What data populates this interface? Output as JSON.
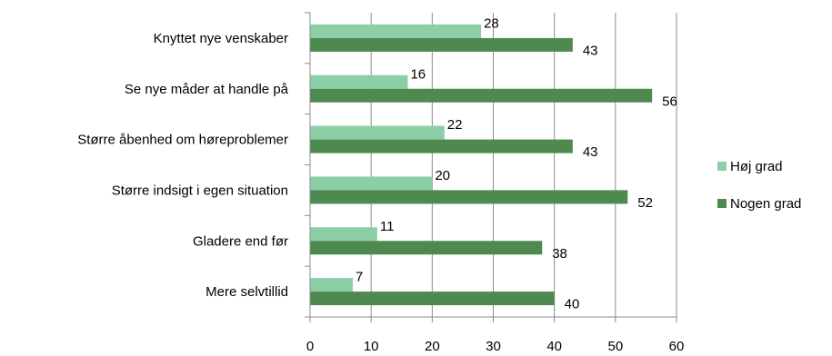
{
  "chart_data": {
    "type": "bar",
    "orientation": "horizontal",
    "categories": [
      "Knyttet nye venskaber",
      "Se nye måder at handle på",
      "Større åbenhed om høreproblemer",
      "Større indsigt i egen situation",
      "Gladere end før",
      "Mere selvtillid"
    ],
    "series": [
      {
        "name": "Høj grad",
        "values": [
          28,
          16,
          22,
          20,
          11,
          7
        ],
        "color": "#8ccfa6"
      },
      {
        "name": "Nogen grad",
        "values": [
          43,
          56,
          43,
          52,
          38,
          40
        ],
        "color": "#4e8a4f"
      }
    ],
    "xlim": [
      0,
      60
    ],
    "xticks": [
      0,
      10,
      20,
      30,
      40,
      50,
      60
    ],
    "grid": true,
    "legend": "right",
    "title": "",
    "xlabel": "",
    "ylabel": ""
  }
}
